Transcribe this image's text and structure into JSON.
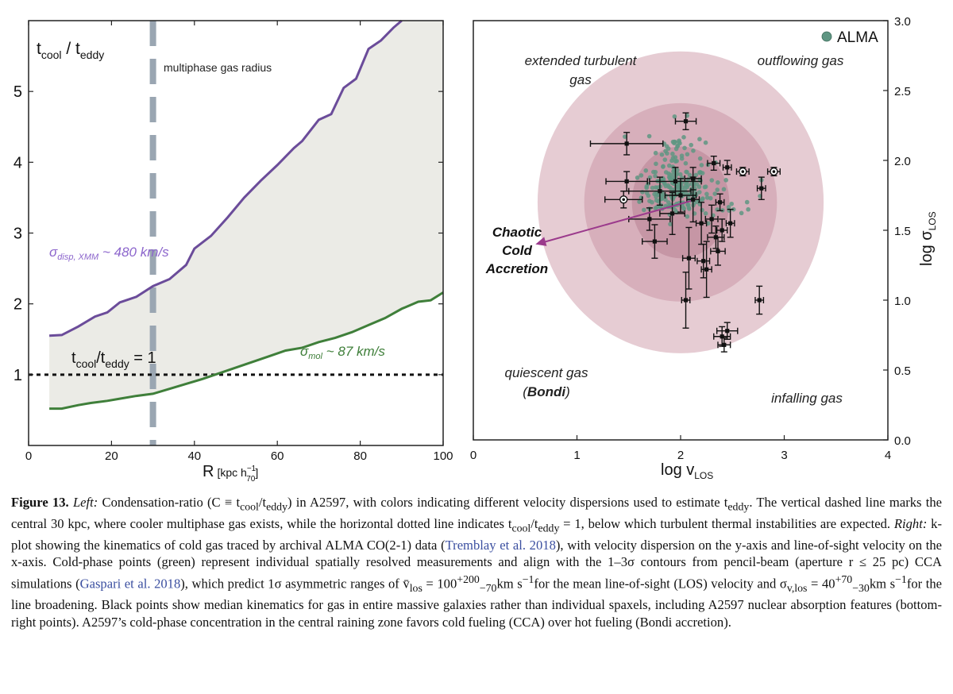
{
  "chart_data": [
    {
      "type": "line",
      "panel": "left",
      "xlabel_main": "R",
      "xlabel_unit": "[kpc h",
      "xlabel_unit_sup": "−1",
      "xlabel_unit_sub": "70",
      "xlabel_unit_close": "]",
      "ylabel_num": "t",
      "ylabel_num_sub": "cool",
      "ylabel_sep": " / t",
      "ylabel_den_sub": "eddy",
      "xlim": [
        0,
        100
      ],
      "ylim": [
        0,
        6
      ],
      "xticks": [
        "0",
        "20",
        "40",
        "60",
        "80",
        "100"
      ],
      "yticks": [
        "1",
        "2",
        "3",
        "4",
        "5"
      ],
      "series": [
        {
          "name": "σdisp, XMM ~ 480 km/s",
          "label_main": "σ",
          "label_sub": "disp, XMM",
          "label_rest": " ~ 480 km/s",
          "color": "#6b4c9a",
          "x": [
            5,
            8,
            12,
            16,
            19,
            22,
            26,
            30,
            34,
            38,
            40,
            44,
            48,
            52,
            56,
            60,
            64,
            66,
            70,
            73,
            76,
            79,
            82,
            85,
            88,
            90
          ],
          "y": [
            1.55,
            1.56,
            1.68,
            1.82,
            1.88,
            2.02,
            2.1,
            2.25,
            2.35,
            2.55,
            2.78,
            2.96,
            3.22,
            3.5,
            3.74,
            3.96,
            4.2,
            4.3,
            4.6,
            4.68,
            5.05,
            5.18,
            5.6,
            5.72,
            5.9,
            6.0
          ]
        },
        {
          "name": "σmol ~ 87 km/s",
          "label_main": "σ",
          "label_sub": "mol",
          "label_rest": " ~ 87 km/s",
          "color": "#3f7f3a",
          "x": [
            5,
            8,
            12,
            15,
            19,
            22,
            26,
            30,
            34,
            38,
            42,
            46,
            50,
            54,
            58,
            62,
            66,
            70,
            74,
            78,
            82,
            86,
            90,
            94,
            97,
            100
          ],
          "y": [
            0.52,
            0.52,
            0.57,
            0.6,
            0.63,
            0.66,
            0.7,
            0.73,
            0.8,
            0.87,
            0.94,
            1.02,
            1.1,
            1.18,
            1.26,
            1.34,
            1.38,
            1.46,
            1.52,
            1.6,
            1.7,
            1.8,
            1.93,
            2.03,
            2.05,
            2.16
          ]
        }
      ],
      "reference_line": {
        "y": 1,
        "label_t": "t",
        "label_sub1": "cool",
        "label_mid": "/t",
        "label_sub2": "eddy",
        "label_rest": " = 1"
      },
      "vline": {
        "x": 30,
        "label": "multiphase gas radius"
      },
      "colors": {
        "fill": "#ebebe6",
        "vline": "#9aa6b2",
        "ref": "#111111"
      }
    },
    {
      "type": "scatter",
      "panel": "right",
      "xlabel_main": "log v",
      "xlabel_sub": "LOS",
      "ylabel_main": "log σ",
      "ylabel_sub": "LOS",
      "xlim": [
        0,
        4
      ],
      "ylim": [
        0,
        3
      ],
      "xticks": [
        "0",
        "1",
        "2",
        "3",
        "4"
      ],
      "yticks": [
        "0.0",
        "0.5",
        "1.0",
        "1.5",
        "2.0",
        "2.5",
        "3.0"
      ],
      "legend": {
        "label": "ALMA",
        "position": "top-right"
      },
      "contours_center": [
        2.0,
        1.7
      ],
      "contours": [
        {
          "sigma": 3,
          "rx": 1.38,
          "ry": 1.08,
          "color": "#e6ccd3"
        },
        {
          "sigma": 2,
          "rx": 0.93,
          "ry": 0.71,
          "color": "#d7afbb"
        },
        {
          "sigma": 1,
          "rx": 0.47,
          "ry": 0.4,
          "color": "#c696a5"
        }
      ],
      "annotations": {
        "extended": [
          "extended turbulent",
          "gas"
        ],
        "outflowing": "outflowing gas",
        "quiescent": [
          "quiescent gas"
        ],
        "bondi_open": "(",
        "bondi": "Bondi",
        "bondi_close": ")",
        "infalling": "infalling gas",
        "cca": [
          "Chaotic",
          "Cold",
          "Accretion"
        ]
      },
      "arrow": {
        "from": [
          2.1,
          1.71
        ],
        "to": [
          0.6,
          1.4
        ],
        "color": "#9b3a8c"
      },
      "alma_color": "#5f9683",
      "alma_points": 260,
      "black_points": [
        {
          "x": 1.48,
          "y": 2.12,
          "xe": 0.35,
          "ye": 0.08
        },
        {
          "x": 1.45,
          "y": 1.72,
          "xe": 0.18,
          "ye": 0.06,
          "open": true
        },
        {
          "x": 1.48,
          "y": 1.85,
          "xe": 0.2,
          "ye": 0.07
        },
        {
          "x": 1.7,
          "y": 1.58,
          "xe": 0.2,
          "ye": 0.08
        },
        {
          "x": 1.75,
          "y": 1.42,
          "xe": 0.12,
          "ye": 0.12
        },
        {
          "x": 1.8,
          "y": 1.78,
          "xe": 0.3,
          "ye": 0.1
        },
        {
          "x": 1.95,
          "y": 1.85,
          "xe": 0.25,
          "ye": 0.1
        },
        {
          "x": 2.0,
          "y": 1.75,
          "xe": 0.15,
          "ye": 0.12
        },
        {
          "x": 1.92,
          "y": 1.62,
          "xe": 0.12,
          "ye": 0.15
        },
        {
          "x": 2.05,
          "y": 2.28,
          "xe": 0.1,
          "ye": 0.06
        },
        {
          "x": 2.08,
          "y": 1.3,
          "xe": 0.06,
          "ye": 0.22
        },
        {
          "x": 2.12,
          "y": 1.72,
          "xe": 0.06,
          "ye": 0.16
        },
        {
          "x": 2.2,
          "y": 1.55,
          "xe": 0.05,
          "ye": 0.15
        },
        {
          "x": 2.22,
          "y": 1.28,
          "xe": 0.06,
          "ye": 0.12
        },
        {
          "x": 2.25,
          "y": 1.22,
          "xe": 0.05,
          "ye": 0.2
        },
        {
          "x": 2.3,
          "y": 1.58,
          "xe": 0.06,
          "ye": 0.1
        },
        {
          "x": 2.34,
          "y": 1.45,
          "xe": 0.08,
          "ye": 0.08
        },
        {
          "x": 2.36,
          "y": 1.35,
          "xe": 0.07,
          "ye": 0.1
        },
        {
          "x": 2.4,
          "y": 1.5,
          "xe": 0.05,
          "ye": 0.08
        },
        {
          "x": 2.05,
          "y": 1.0,
          "xe": 0.04,
          "ye": 0.2
        },
        {
          "x": 2.12,
          "y": 1.87,
          "xe": 0.08,
          "ye": 0.08
        },
        {
          "x": 2.32,
          "y": 1.98,
          "xe": 0.06,
          "ye": 0.05
        },
        {
          "x": 2.45,
          "y": 1.95,
          "xe": 0.04,
          "ye": 0.05
        },
        {
          "x": 2.6,
          "y": 1.92,
          "xe": 0.06,
          "ye": 0.03,
          "open": true
        },
        {
          "x": 2.9,
          "y": 1.92,
          "xe": 0.06,
          "ye": 0.03,
          "open": true
        },
        {
          "x": 2.78,
          "y": 1.8,
          "xe": 0.04,
          "ye": 0.08
        },
        {
          "x": 2.48,
          "y": 1.55,
          "xe": 0.04,
          "ye": 0.1
        },
        {
          "x": 2.38,
          "y": 1.7,
          "xe": 0.04,
          "ye": 0.06
        },
        {
          "x": 2.76,
          "y": 1.0,
          "xe": 0.04,
          "ye": 0.1
        },
        {
          "x": 2.4,
          "y": 0.74,
          "xe": 0.08,
          "ye": 0.07
        },
        {
          "x": 2.45,
          "y": 0.78,
          "xe": 0.1,
          "ye": 0.06
        },
        {
          "x": 2.42,
          "y": 0.68,
          "xe": 0.06,
          "ye": 0.05
        }
      ]
    }
  ],
  "caption": {
    "label": "Figure 13.",
    "left_label": "Left:",
    "seg1": " Condensation-ratio (C ≡ t",
    "sub_cool1": "cool",
    "seg2": "/t",
    "sub_eddy1": "eddy",
    "seg3": ") in A2597, with colors indicating different velocity dispersions used to estimate t",
    "sub_eddy2": "eddy",
    "seg4": ". The vertical dashed line marks the central 30 kpc, where cooler multiphase gas exists, while the horizontal dotted line indicates t",
    "sub_cool2": "cool",
    "seg5": "/t",
    "sub_eddy3": "eddy",
    "seg6": " = 1, below which turbulent thermal instabilities are expected.",
    "right_label": "Right:",
    "seg7": " k-plot showing the kinematics of cold gas traced by archival ALMA CO(2-1) data (",
    "link1": "Tremblay et al. 2018",
    "seg8": "), with velocity dispersion on the y-axis and line-of-sight velocity on the x-axis. Cold-phase points (green) represent individual spatially resolved measurements and align with the 1–3σ contours from pencil-beam (aperture r ≤ 25 pc) CCA simulations (",
    "link2": "Gaspari et al. 2018",
    "seg9": "), which predict 1σ asymmetric ranges of v̄",
    "sub_los1": "los",
    "seg10": " = 100",
    "sup_v": "+200",
    "sub_v": "−70",
    "seg11": "km s",
    "sup_m1a": "−1",
    "seg12": "for the mean line-of-sight (LOS) velocity and σ",
    "sub_vlos": "v,los",
    "seg13": " = 40",
    "sup_s": "+70",
    "sub_s": "−30",
    "seg14": "km s",
    "sup_m1b": "−1",
    "seg15": "for the line broadening. Black points show median kinematics for gas in entire massive galaxies rather than individual spaxels, including A2597 nuclear absorption features (bottom-right points). A2597’s cold-phase concentration in the central raining zone favors cold fueling (CCA) over hot fueling (Bondi accretion)."
  }
}
